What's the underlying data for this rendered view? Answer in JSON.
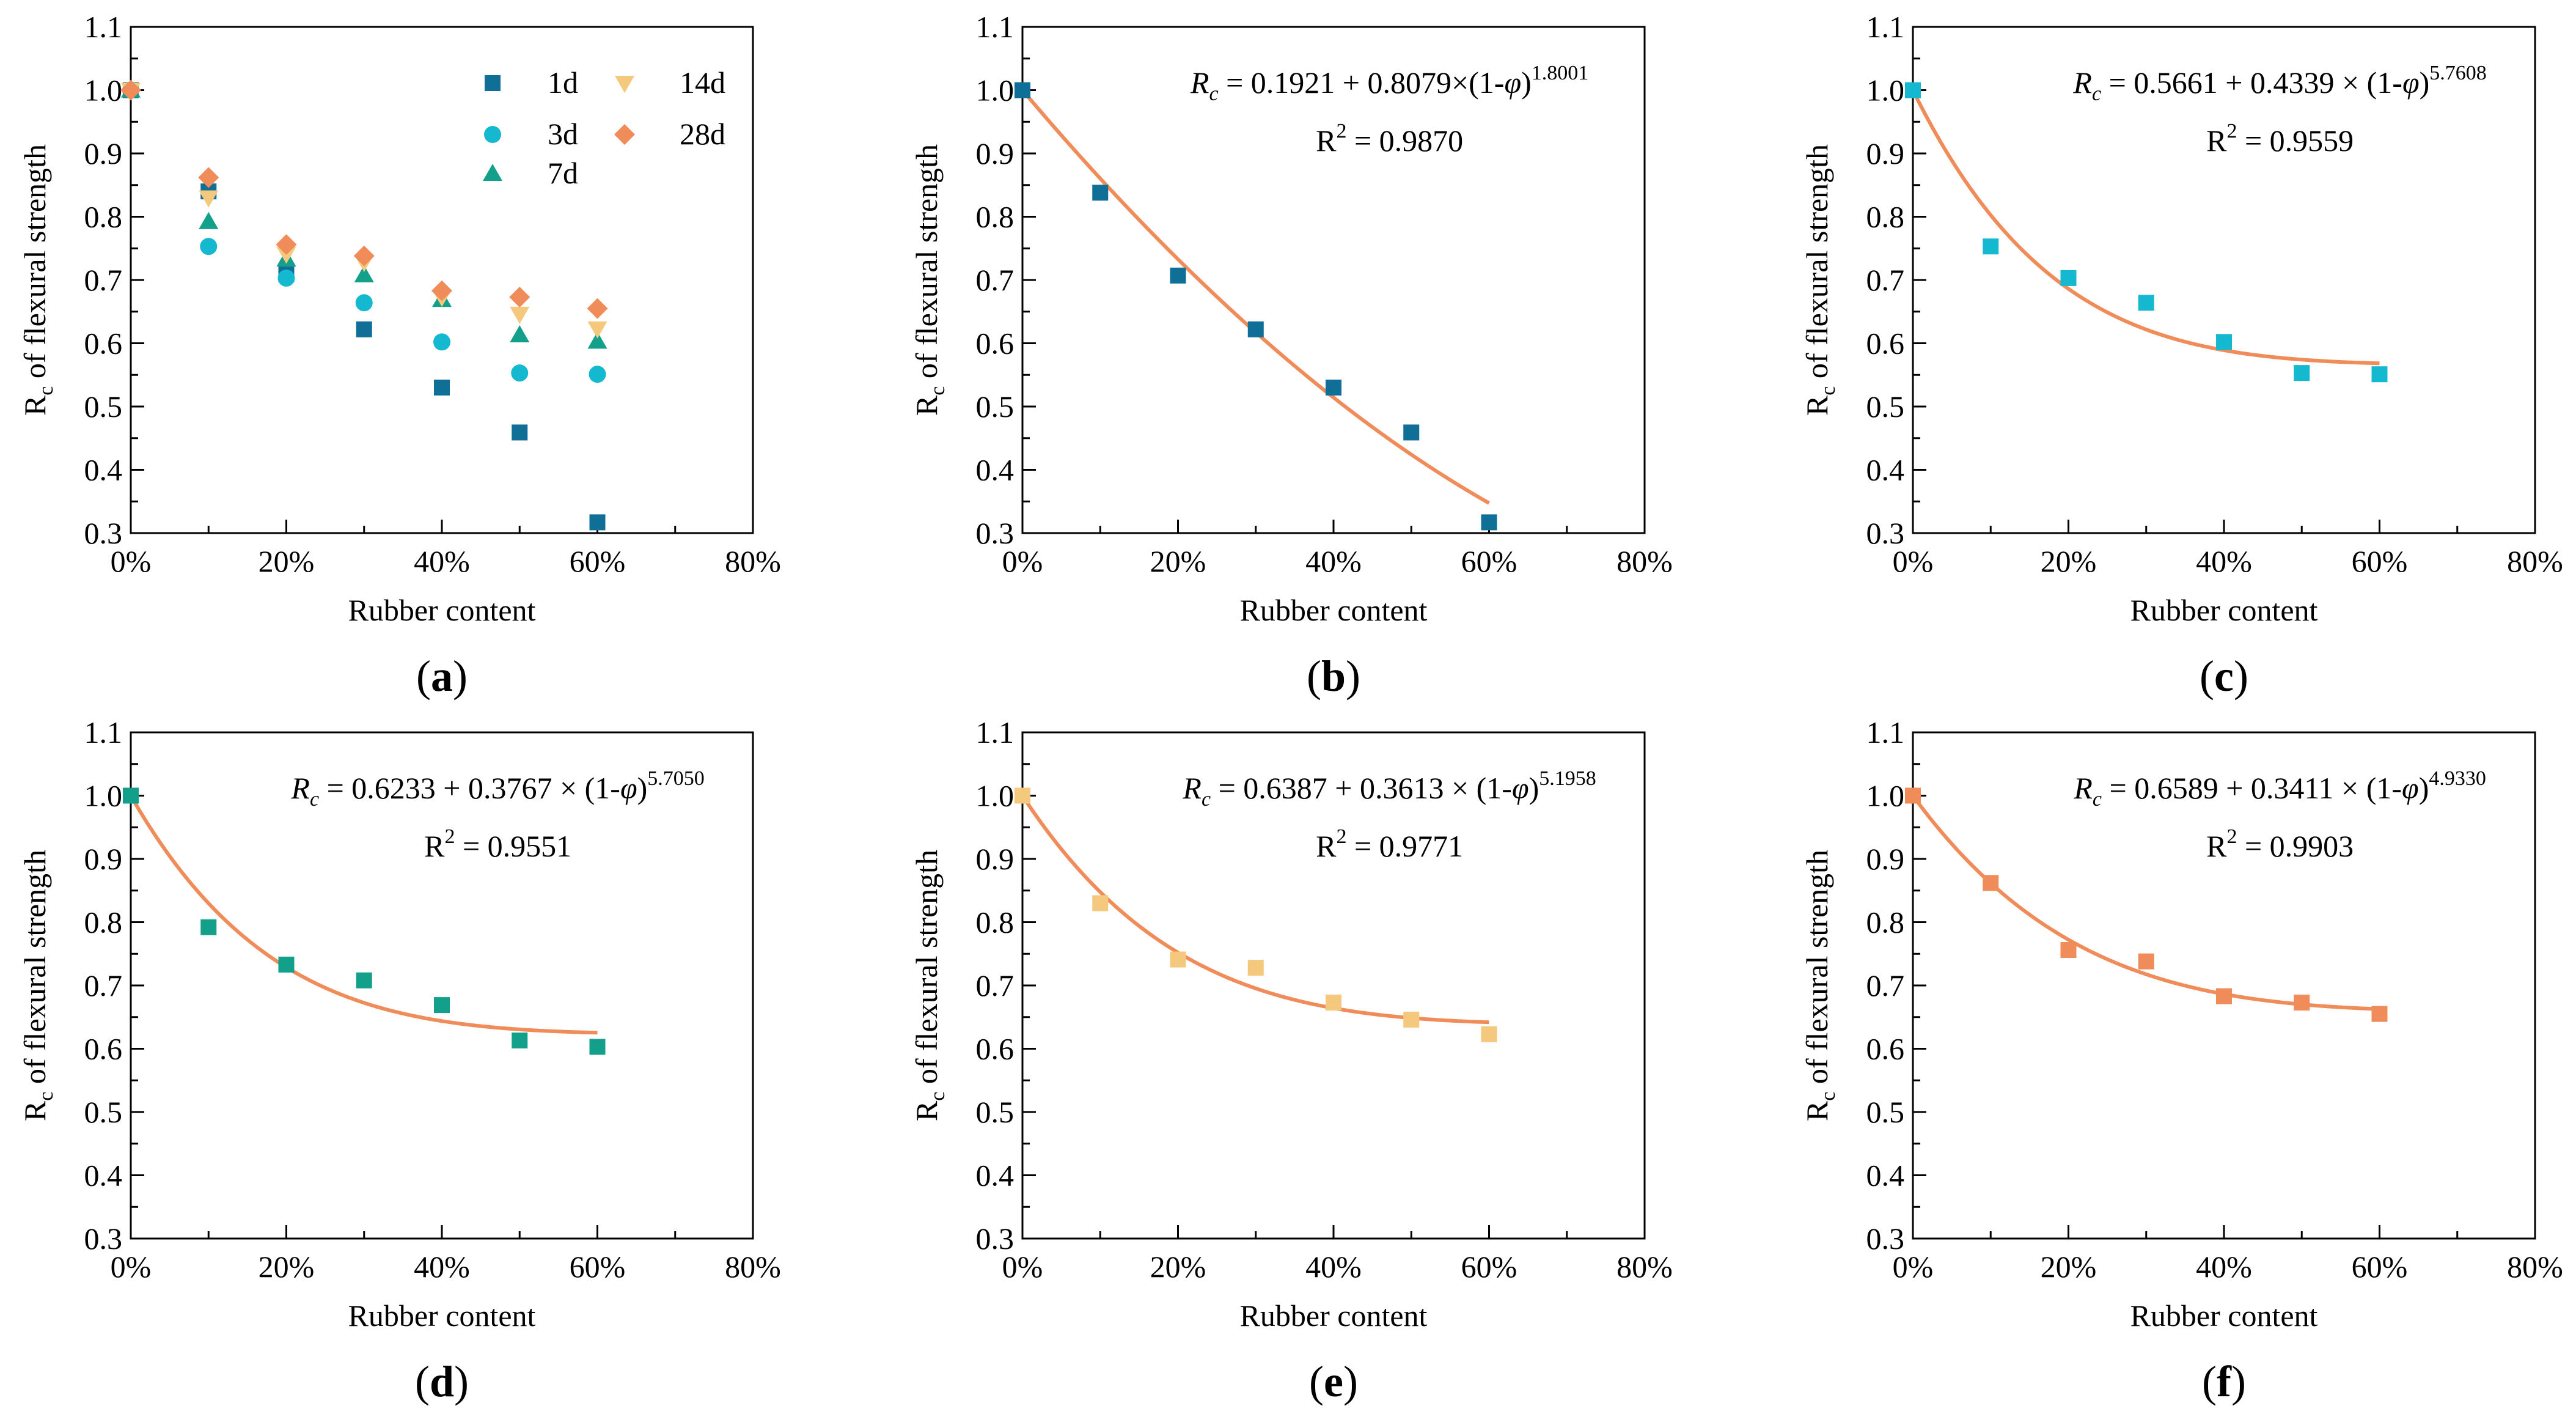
{
  "colors": {
    "1d": "#0f6f96",
    "3d": "#14b8cf",
    "7d": "#12a08a",
    "14d": "#f5c97d",
    "28d": "#f08c5a",
    "fit": "#f08c5a",
    "axis": "#000000"
  },
  "chart_data": [
    {
      "id": "a",
      "type": "scatter",
      "panel_label": "a",
      "xlabel": "Rubber content",
      "ylabel_main": "R",
      "ylabel_sub": "c",
      "ylabel_rest": " of flexural strength",
      "xlim": [
        0,
        80
      ],
      "ylim": [
        0.3,
        1.1
      ],
      "xticks": [
        "0%",
        "20%",
        "40%",
        "60%",
        "80%"
      ],
      "yticks": [
        "0.3",
        "0.4",
        "0.5",
        "0.6",
        "0.7",
        "0.8",
        "0.9",
        "1.0",
        "1.1"
      ],
      "legend_position": "top-right",
      "series": [
        {
          "name": "1d",
          "marker": "square",
          "x": [
            0,
            10,
            20,
            30,
            40,
            50,
            60
          ],
          "values": [
            1.0,
            0.84,
            0.709,
            0.622,
            0.53,
            0.459,
            0.317
          ]
        },
        {
          "name": "3d",
          "marker": "circle",
          "x": [
            0,
            10,
            20,
            30,
            40,
            50,
            60
          ],
          "values": [
            1.0,
            0.753,
            0.703,
            0.664,
            0.602,
            0.553,
            0.551
          ]
        },
        {
          "name": "7d",
          "marker": "triangle-up",
          "x": [
            0,
            10,
            20,
            30,
            40,
            50,
            60
          ],
          "values": [
            1.0,
            0.792,
            0.733,
            0.708,
            0.669,
            0.613,
            0.603
          ]
        },
        {
          "name": "14d",
          "marker": "triangle-down",
          "x": [
            0,
            10,
            20,
            30,
            40,
            50,
            60
          ],
          "values": [
            1.0,
            0.83,
            0.741,
            0.728,
            0.673,
            0.646,
            0.623
          ]
        },
        {
          "name": "28d",
          "marker": "diamond",
          "x": [
            0,
            10,
            20,
            30,
            40,
            50,
            60
          ],
          "values": [
            1.0,
            0.862,
            0.756,
            0.738,
            0.683,
            0.673,
            0.655
          ]
        }
      ]
    },
    {
      "id": "b",
      "type": "scatter",
      "panel_label": "b",
      "xlabel": "Rubber content",
      "ylabel_main": "R",
      "ylabel_sub": "c",
      "ylabel_rest": " of flexural strength",
      "xlim": [
        0,
        80
      ],
      "ylim": [
        0.3,
        1.1
      ],
      "xticks": [
        "0%",
        "20%",
        "40%",
        "60%",
        "80%"
      ],
      "yticks": [
        "0.3",
        "0.4",
        "0.5",
        "0.6",
        "0.7",
        "0.8",
        "0.9",
        "1.0",
        "1.1"
      ],
      "series": [
        {
          "name": "1d",
          "marker": "square",
          "x": [
            0,
            10,
            20,
            30,
            40,
            50,
            60
          ],
          "values": [
            1.0,
            0.838,
            0.707,
            0.622,
            0.53,
            0.459,
            0.317
          ]
        }
      ],
      "fit": {
        "a": 0.1921,
        "b": 0.8079,
        "n": 1.8001,
        "x_range": [
          0,
          60
        ]
      },
      "equation": {
        "lhs": "R",
        "lhs_sub": "c",
        "mid": " = 0.1921 + 0.8079×(1-",
        "phi": "φ",
        "close": ")",
        "exponent": "1.8001"
      },
      "r2": {
        "label": "R",
        "power": "2",
        "value": " = 0.9870"
      }
    },
    {
      "id": "c",
      "type": "scatter",
      "panel_label": "c",
      "xlabel": "Rubber content",
      "ylabel_main": "R",
      "ylabel_sub": "c",
      "ylabel_rest": " of flexural strength",
      "xlim": [
        0,
        80
      ],
      "ylim": [
        0.3,
        1.1
      ],
      "xticks": [
        "0%",
        "20%",
        "40%",
        "60%",
        "80%"
      ],
      "yticks": [
        "0.3",
        "0.4",
        "0.5",
        "0.6",
        "0.7",
        "0.8",
        "0.9",
        "1.0",
        "1.1"
      ],
      "series": [
        {
          "name": "3d",
          "marker": "square",
          "x": [
            0,
            10,
            20,
            30,
            40,
            50,
            60
          ],
          "values": [
            1.0,
            0.753,
            0.703,
            0.664,
            0.602,
            0.553,
            0.551
          ]
        }
      ],
      "fit": {
        "a": 0.5661,
        "b": 0.4339,
        "n": 5.7608,
        "x_range": [
          0,
          60
        ]
      },
      "equation": {
        "lhs": "R",
        "lhs_sub": "c",
        "mid": " = 0.5661 + 0.4339 × (1-",
        "phi": "φ",
        "close": ")",
        "exponent": "5.7608"
      },
      "r2": {
        "label": "R",
        "power": "2",
        "value": " = 0.9559"
      }
    },
    {
      "id": "d",
      "type": "scatter",
      "panel_label": "d",
      "xlabel": "Rubber content",
      "ylabel_main": "R",
      "ylabel_sub": "c",
      "ylabel_rest": " of flexural strength",
      "xlim": [
        0,
        80
      ],
      "ylim": [
        0.3,
        1.1
      ],
      "xticks": [
        "0%",
        "20%",
        "40%",
        "60%",
        "80%"
      ],
      "yticks": [
        "0.3",
        "0.4",
        "0.5",
        "0.6",
        "0.7",
        "0.8",
        "0.9",
        "1.0",
        "1.1"
      ],
      "series": [
        {
          "name": "7d",
          "marker": "square",
          "x": [
            0,
            10,
            20,
            30,
            40,
            50,
            60
          ],
          "values": [
            1.0,
            0.792,
            0.733,
            0.708,
            0.669,
            0.613,
            0.603
          ]
        }
      ],
      "fit": {
        "a": 0.6233,
        "b": 0.3767,
        "n": 5.705,
        "x_range": [
          0,
          60
        ]
      },
      "equation": {
        "lhs": "R",
        "lhs_sub": "c",
        "mid": " = 0.6233 + 0.3767 × (1-",
        "phi": "φ",
        "close": ")",
        "exponent": "5.7050"
      },
      "r2": {
        "label": "R",
        "power": "2",
        "value": " = 0.9551"
      }
    },
    {
      "id": "e",
      "type": "scatter",
      "panel_label": "e",
      "xlabel": "Rubber content",
      "ylabel_main": "R",
      "ylabel_sub": "c",
      "ylabel_rest": " of flexural strength",
      "xlim": [
        0,
        80
      ],
      "ylim": [
        0.3,
        1.1
      ],
      "xticks": [
        "0%",
        "20%",
        "40%",
        "60%",
        "80%"
      ],
      "yticks": [
        "0.3",
        "0.4",
        "0.5",
        "0.6",
        "0.7",
        "0.8",
        "0.9",
        "1.0",
        "1.1"
      ],
      "series": [
        {
          "name": "14d",
          "marker": "square",
          "x": [
            0,
            10,
            20,
            30,
            40,
            50,
            60
          ],
          "values": [
            1.0,
            0.83,
            0.741,
            0.728,
            0.673,
            0.646,
            0.623
          ]
        }
      ],
      "fit": {
        "a": 0.6387,
        "b": 0.3613,
        "n": 5.1958,
        "x_range": [
          0,
          60
        ]
      },
      "equation": {
        "lhs": "R",
        "lhs_sub": "c",
        "mid": " = 0.6387 + 0.3613 × (1-",
        "phi": "φ",
        "close": ")",
        "exponent": "5.1958"
      },
      "r2": {
        "label": "R",
        "power": "2",
        "value": " = 0.9771"
      }
    },
    {
      "id": "f",
      "type": "scatter",
      "panel_label": "f",
      "xlabel": "Rubber content",
      "ylabel_main": "R",
      "ylabel_sub": "c",
      "ylabel_rest": " of flexural strength",
      "xlim": [
        0,
        80
      ],
      "ylim": [
        0.3,
        1.1
      ],
      "xticks": [
        "0%",
        "20%",
        "40%",
        "60%",
        "80%"
      ],
      "yticks": [
        "0.3",
        "0.4",
        "0.5",
        "0.6",
        "0.7",
        "0.8",
        "0.9",
        "1.0",
        "1.1"
      ],
      "series": [
        {
          "name": "28d",
          "marker": "square",
          "x": [
            0,
            10,
            20,
            30,
            40,
            50,
            60
          ],
          "values": [
            1.0,
            0.862,
            0.756,
            0.738,
            0.683,
            0.673,
            0.655
          ]
        }
      ],
      "fit": {
        "a": 0.6589,
        "b": 0.3411,
        "n": 4.933,
        "x_range": [
          0,
          60
        ]
      },
      "equation": {
        "lhs": "R",
        "lhs_sub": "c",
        "mid": " = 0.6589 + 0.3411 × (1-",
        "phi": "φ",
        "close": ")",
        "exponent": "4.9330"
      },
      "r2": {
        "label": "R",
        "power": "2",
        "value": " = 0.9903"
      }
    }
  ]
}
